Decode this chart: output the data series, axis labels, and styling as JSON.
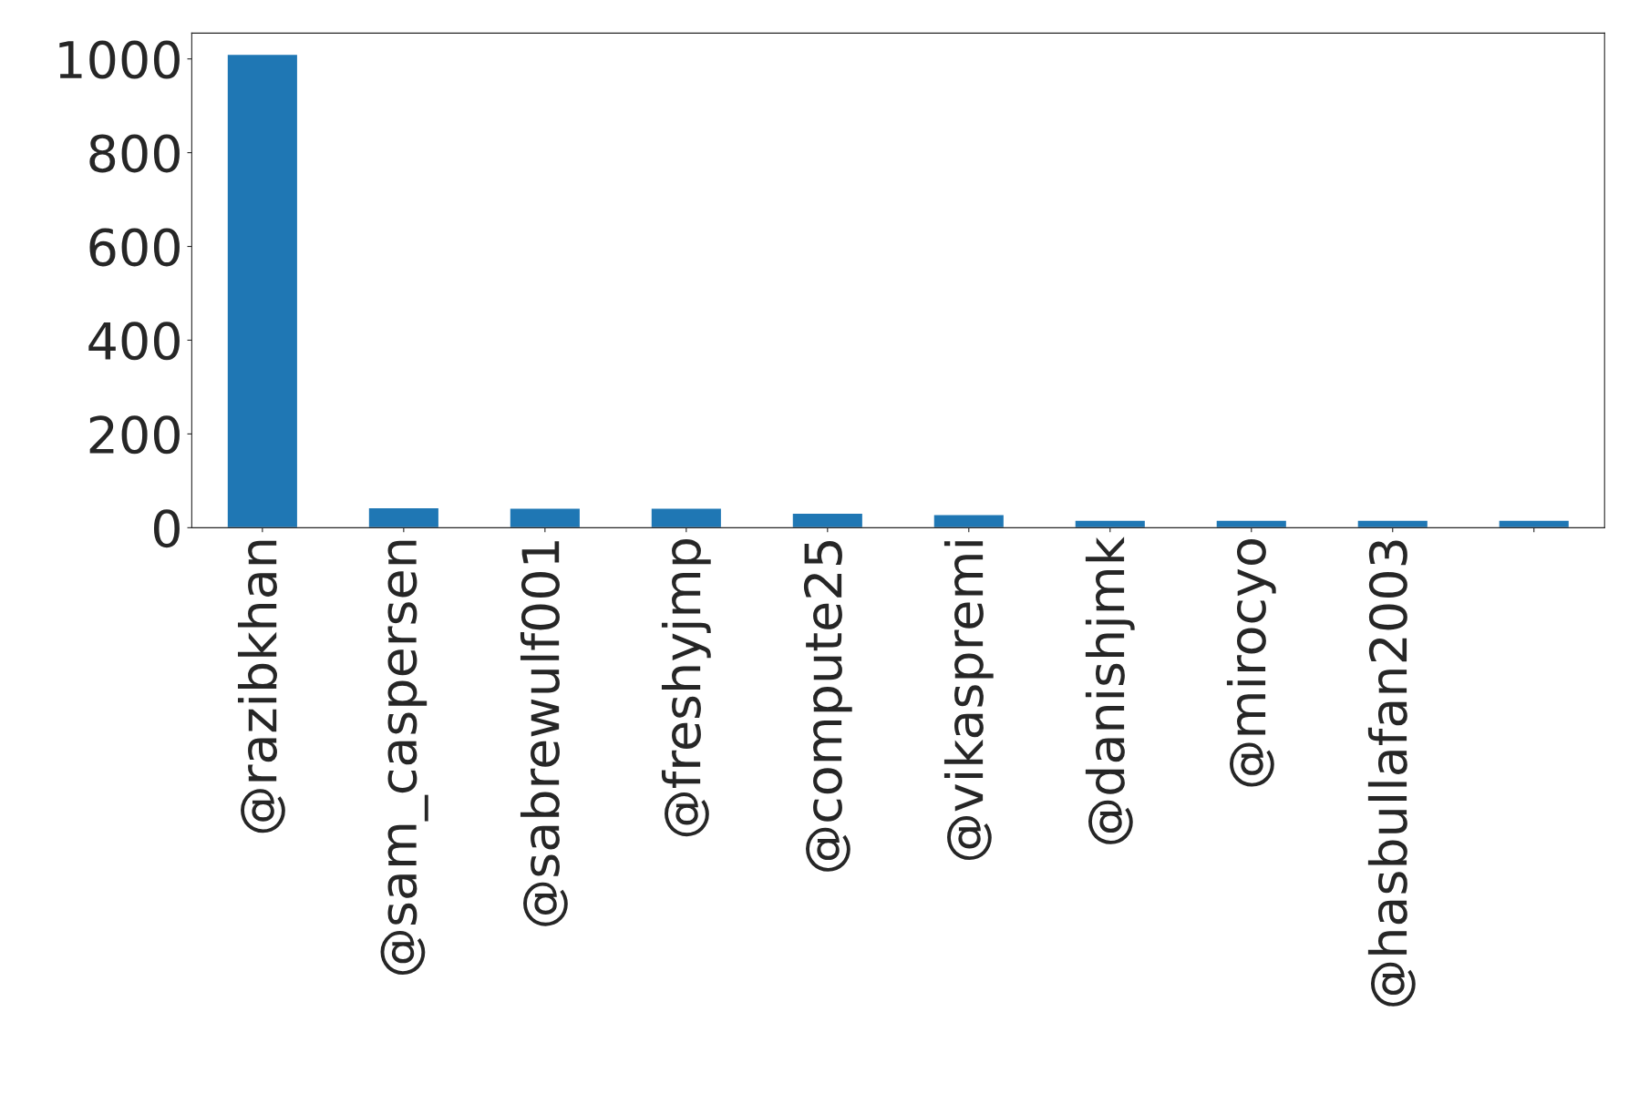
{
  "chart_data": {
    "type": "bar",
    "categories": [
      "@razibkhan",
      "@sam_caspersen",
      "@sabrewulf001",
      "@freshyjmp",
      "@compute25",
      "@vikaspremi",
      "@danishjmk",
      "@mirocyo",
      "@hasbullafan2003",
      null
    ],
    "values": [
      1010,
      43,
      42,
      42,
      31,
      28,
      16,
      16,
      16,
      16
    ],
    "color": "#1f77b4",
    "ylim": [
      0,
      1055
    ],
    "yticks": [
      0,
      200,
      400,
      600,
      800,
      1000
    ],
    "grid": false
  }
}
